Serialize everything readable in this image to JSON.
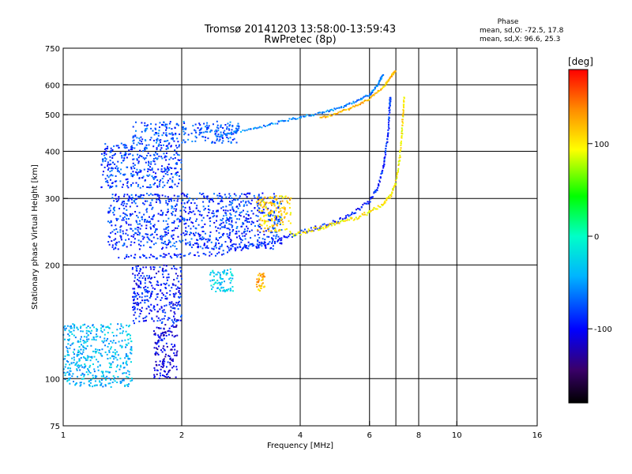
{
  "chart_data": {
    "type": "scatter",
    "title": "Tromsø 20141203 13:58:00-13:59:43",
    "subtitle": "RwPretec (8p)",
    "xlabel": "Frequency [MHz]",
    "ylabel": "Stationary phase Virtual Height [km]",
    "x_scale": "log",
    "y_scale": "log",
    "xlim": [
      1,
      16
    ],
    "ylim": [
      75,
      750
    ],
    "x_ticks": [
      1,
      2,
      4,
      6,
      8,
      10,
      16
    ],
    "y_ticks": [
      75,
      100,
      200,
      300,
      400,
      500,
      600,
      750
    ],
    "x_grid": [
      2,
      4,
      6,
      7,
      8,
      10
    ],
    "y_grid": [
      100,
      200,
      300,
      400,
      500,
      600
    ],
    "grid": true,
    "phase_box": {
      "heading": "Phase",
      "line_o": "mean, sd,O: -72.5, 17.8",
      "line_x": "mean, sd,X:  96.6, 25.3"
    },
    "colorbar": {
      "label": "[deg]",
      "range": [
        -180,
        180
      ],
      "ticks": [
        100,
        0,
        -100
      ],
      "colormap": "rainbow",
      "placement": "right"
    },
    "traces": [
      {
        "description_for": "O-mode F2 trace",
        "phase_deg": -90,
        "points": [
          [
            1.4,
            210
          ],
          [
            1.6,
            210
          ],
          [
            1.8,
            211
          ],
          [
            2.0,
            212
          ],
          [
            2.4,
            214
          ],
          [
            2.8,
            220
          ],
          [
            3.2,
            227
          ],
          [
            3.6,
            235
          ],
          [
            4.0,
            244
          ],
          [
            4.5,
            252
          ],
          [
            5.0,
            262
          ],
          [
            5.5,
            276
          ],
          [
            6.0,
            295
          ],
          [
            6.3,
            320
          ],
          [
            6.5,
            360
          ],
          [
            6.6,
            400
          ],
          [
            6.7,
            450
          ],
          [
            6.75,
            520
          ],
          [
            6.78,
            560
          ]
        ]
      },
      {
        "description_for": "X-mode F2 trace",
        "phase_deg": 100,
        "points": [
          [
            3.8,
            240
          ],
          [
            4.2,
            246
          ],
          [
            4.6,
            252
          ],
          [
            5.0,
            258
          ],
          [
            5.5,
            266
          ],
          [
            6.0,
            276
          ],
          [
            6.5,
            290
          ],
          [
            6.8,
            306
          ],
          [
            7.0,
            330
          ],
          [
            7.15,
            380
          ],
          [
            7.25,
            440
          ],
          [
            7.3,
            500
          ],
          [
            7.35,
            560
          ]
        ]
      },
      {
        "description_for": "Upper O-mode trace",
        "phase_deg": -60,
        "points": [
          [
            2.5,
            440
          ],
          [
            2.8,
            452
          ],
          [
            3.2,
            465
          ],
          [
            3.6,
            480
          ],
          [
            4.0,
            492
          ],
          [
            4.5,
            505
          ],
          [
            5.0,
            520
          ],
          [
            5.5,
            540
          ],
          [
            6.0,
            565
          ],
          [
            6.3,
            600
          ],
          [
            6.5,
            640
          ]
        ]
      },
      {
        "description_for": "Upper X-mode trace",
        "phase_deg": 120,
        "points": [
          [
            4.5,
            490
          ],
          [
            5.0,
            505
          ],
          [
            5.5,
            525
          ],
          [
            6.0,
            550
          ],
          [
            6.5,
            590
          ],
          [
            6.8,
            630
          ],
          [
            7.0,
            655
          ]
        ]
      }
    ],
    "clusters": [
      {
        "x": [
          1.5,
          2.8
        ],
        "y": [
          420,
          480
        ],
        "phase_deg": -75
      },
      {
        "x": [
          1.25,
          2.0
        ],
        "y": [
          320,
          420
        ],
        "phase_deg": -80
      },
      {
        "x": [
          1.3,
          3.6
        ],
        "y": [
          220,
          310
        ],
        "phase_deg": -85
      },
      {
        "x": [
          1.5,
          2.0
        ],
        "y": [
          140,
          200
        ],
        "phase_deg": -95
      },
      {
        "x": [
          1.0,
          1.5
        ],
        "y": [
          95,
          140
        ],
        "phase_deg": -40
      },
      {
        "x": [
          1.7,
          1.95
        ],
        "y": [
          100,
          140
        ],
        "phase_deg": -110
      },
      {
        "x": [
          3.1,
          3.8
        ],
        "y": [
          245,
          305
        ],
        "phase_deg": 110
      },
      {
        "x": [
          3.1,
          3.25
        ],
        "y": [
          170,
          190
        ],
        "phase_deg": 120
      },
      {
        "x": [
          2.35,
          2.7
        ],
        "y": [
          170,
          195
        ],
        "phase_deg": -30
      }
    ]
  }
}
